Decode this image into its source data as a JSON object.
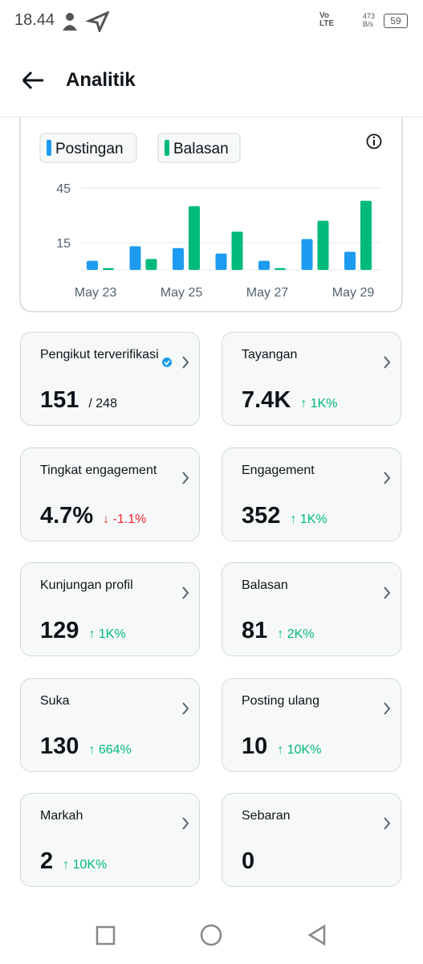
{
  "status_bar": {
    "time": "18.44",
    "network": "Vo LTE",
    "speed": "473 B/s",
    "battery": "59"
  },
  "header": {
    "title": "Analitik"
  },
  "chart_data": {
    "type": "bar",
    "categories": [
      "May 23",
      null,
      "May 25",
      null,
      "May 27",
      null,
      "May 29"
    ],
    "series": [
      {
        "name": "Postingan",
        "color": "#1d9bf0",
        "values": [
          5,
          13,
          12,
          9,
          5,
          17,
          10
        ]
      },
      {
        "name": "Balasan",
        "color": "#00ba7c",
        "values": [
          1,
          6,
          35,
          21,
          1,
          27,
          38
        ]
      }
    ],
    "ylim": [
      0,
      45
    ],
    "yticks": [
      15,
      45
    ],
    "grid": true
  },
  "cards": [
    {
      "label": "Pengikut terverifikasi",
      "value": "151",
      "change": "/ 248",
      "color": "#0f1419",
      "verified": true
    },
    {
      "label": "Tayangan",
      "value": "7.4K",
      "change": "↑ 1K%",
      "color": "#00ba7c"
    },
    {
      "label": "Tingkat engagement",
      "value": "4.7%",
      "change": "↓ -1.1%",
      "color": "#f4212e"
    },
    {
      "label": "Engagement",
      "value": "352",
      "change": "↑ 1K%",
      "color": "#00ba7c"
    },
    {
      "label": "Kunjungan profil",
      "value": "129",
      "change": "↑ 1K%",
      "color": "#00ba7c"
    },
    {
      "label": "Balasan",
      "value": "81",
      "change": "↑ 2K%",
      "color": "#00ba7c"
    },
    {
      "label": "Suka",
      "value": "130",
      "change": "↑ 664%",
      "color": "#00ba7c"
    },
    {
      "label": "Posting ulang",
      "value": "10",
      "change": "↑ 10K%",
      "color": "#00ba7c"
    },
    {
      "label": "Markah",
      "value": "2",
      "change": "↑ 10K%",
      "color": "#00ba7c"
    },
    {
      "label": "Sebaran",
      "value": "0"
    }
  ]
}
